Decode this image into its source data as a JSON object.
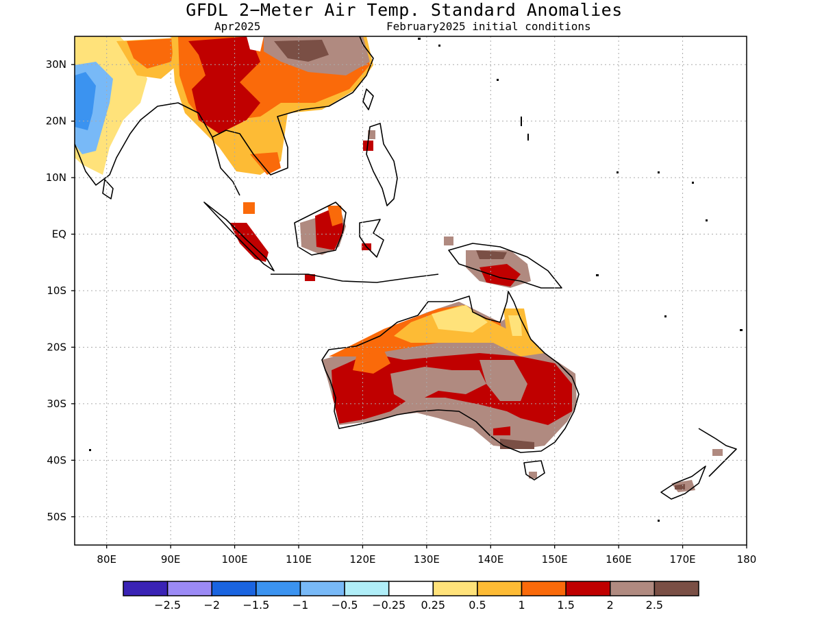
{
  "title": "GFDL 2−Meter Air Temp. Standard Anomalies",
  "subtitle_left": "Apr2025",
  "subtitle_right": "February2025 initial conditions",
  "lat_labels": [
    "30N",
    "20N",
    "10N",
    "EQ",
    "10S",
    "20S",
    "30S",
    "40S",
    "50S"
  ],
  "lon_labels": [
    "80E",
    "90E",
    "100E",
    "110E",
    "120E",
    "130E",
    "140E",
    "150E",
    "160E",
    "170E",
    "180"
  ],
  "colorbar": {
    "colors": [
      "#3a23b5",
      "#9b8af5",
      "#1a64e0",
      "#3b93f0",
      "#78b9f7",
      "#b0eef8",
      "#ffffff",
      "#ffe27a",
      "#fdbb35",
      "#fa6a0a",
      "#c00000",
      "#b08a80",
      "#7a4f45"
    ],
    "labels": [
      "−2.5",
      "−2",
      "−1.5",
      "−1",
      "−0.5",
      "−0.25",
      "0.25",
      "0.5",
      "1",
      "1.5",
      "2",
      "2.5"
    ]
  },
  "chart_data": {
    "type": "heatmap",
    "title": "GFDL 2−Meter Air Temp. Standard Anomalies",
    "lon_range": [
      75,
      180
    ],
    "lat_range": [
      -55,
      35
    ],
    "levels": [
      -2.5,
      -2,
      -1.5,
      -1,
      -0.5,
      -0.25,
      0.25,
      0.5,
      1,
      1.5,
      2,
      2.5
    ],
    "grid": true,
    "regions": [
      {
        "area": "Northern India",
        "anomaly": 0.5
      },
      {
        "area": "Central India",
        "anomaly": -0.5
      },
      {
        "area": "Southeast Asia / Southern China",
        "anomaly": 2
      },
      {
        "area": "Eastern China",
        "anomaly": 2.5
      },
      {
        "area": "Borneo",
        "anomaly": 2
      },
      {
        "area": "Sumatra",
        "anomaly": 2
      },
      {
        "area": "New Guinea",
        "anomaly": 2.5
      },
      {
        "area": "Northern Australia",
        "anomaly": 1
      },
      {
        "area": "Western Australia",
        "anomaly": 2
      },
      {
        "area": "Southeastern Australia",
        "anomaly": 2.5
      },
      {
        "area": "New Zealand",
        "anomaly": 2.5
      }
    ]
  }
}
